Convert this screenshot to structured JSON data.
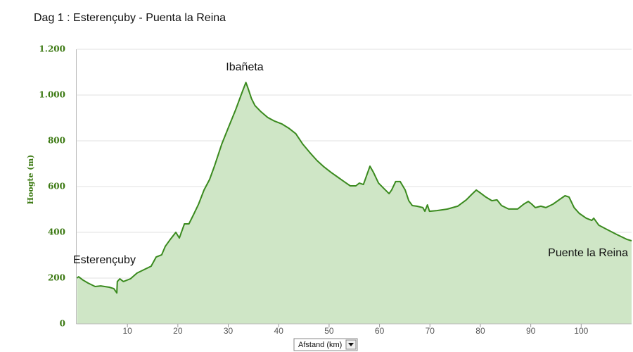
{
  "chart_data": {
    "type": "area",
    "title": "Dag 1 : Esterençuby - Puenta la Reina",
    "y_label": "Hoogte (m)",
    "x_label": "Afstand (km)",
    "annotations": [
      "Esterençuby",
      "Ibañeta",
      "Puente la Reina"
    ],
    "color": "#3a8a1e",
    "fill": "#cfe6c6",
    "grid": true,
    "xlim": [
      0,
      110
    ],
    "ylim": [
      0,
      1200
    ],
    "xticks": [
      10,
      20,
      30,
      40,
      50,
      60,
      70,
      80,
      90,
      100
    ],
    "yticks": [
      0,
      200,
      400,
      600,
      800,
      {
        "value": 1000,
        "label": "1.000"
      },
      {
        "value": 1200,
        "label": "1.200"
      }
    ],
    "x": [
      0,
      0.3,
      1.2,
      2.2,
      3.6,
      4.7,
      6.4,
      7.3,
      7.9,
      8.0,
      8.5,
      9.2,
      10.6,
      11.9,
      13.3,
      14.7,
      15.7,
      16.8,
      17.5,
      18.5,
      19.6,
      20.3,
      21.3,
      22.2,
      23.1,
      24.1,
      25.2,
      26.3,
      27.3,
      28.7,
      30.1,
      31.5,
      32.8,
      33.5,
      33.9,
      34.6,
      35.3,
      36.4,
      37.8,
      39.2,
      40.6,
      42.0,
      43.4,
      44.8,
      46.2,
      47.6,
      49.0,
      50.4,
      51.8,
      53.2,
      54.2,
      55.3,
      56.0,
      56.8,
      57.4,
      58.1,
      58.8,
      59.8,
      60.9,
      61.9,
      62.4,
      63.2,
      64.1,
      65.1,
      65.8,
      66.5,
      67.4,
      68.6,
      69.0,
      69.5,
      69.9,
      71.4,
      73.5,
      75.5,
      77.2,
      78.3,
      79.2,
      80.0,
      81.1,
      82.3,
      83.3,
      84.2,
      85.6,
      87.4,
      88.6,
      89.5,
      90.2,
      90.9,
      92.0,
      93.0,
      94.4,
      95.8,
      96.8,
      97.6,
      98.6,
      99.6,
      101.0,
      102.1,
      102.5,
      103.5,
      104.9,
      107.0,
      109.1,
      110.0
    ],
    "values": [
      200,
      206,
      191,
      178,
      163,
      166,
      160,
      154,
      135,
      185,
      197,
      185,
      197,
      222,
      237,
      252,
      292,
      302,
      338,
      369,
      400,
      375,
      437,
      437,
      477,
      523,
      585,
      631,
      692,
      785,
      862,
      938,
      1015,
      1055,
      1031,
      985,
      954,
      929,
      902,
      886,
      874,
      855,
      831,
      785,
      748,
      714,
      686,
      662,
      640,
      618,
      603,
      603,
      615,
      609,
      646,
      689,
      662,
      615,
      591,
      569,
      585,
      622,
      622,
      585,
      538,
      517,
      514,
      508,
      492,
      520,
      492,
      495,
      502,
      514,
      542,
      566,
      585,
      572,
      554,
      538,
      542,
      517,
      502,
      502,
      523,
      535,
      523,
      508,
      514,
      508,
      523,
      545,
      560,
      554,
      508,
      483,
      462,
      452,
      462,
      431,
      415,
      391,
      369,
      363
    ]
  }
}
